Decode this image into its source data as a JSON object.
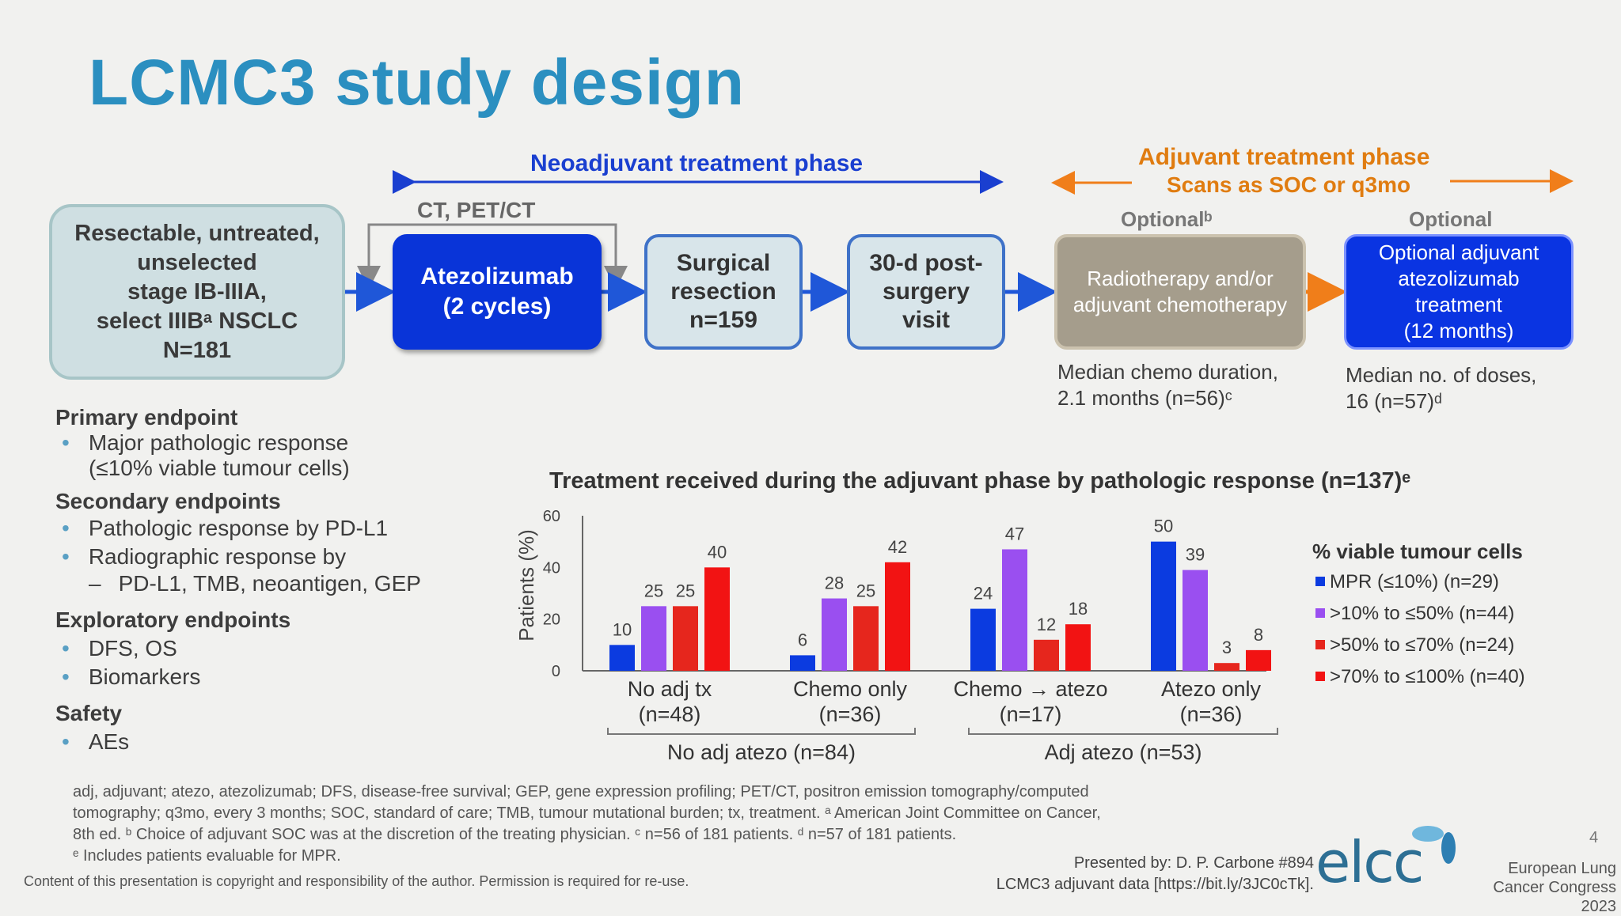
{
  "title": "LCMC3 study design",
  "phases": {
    "neoadjuvant": "Neoadjuvant treatment phase",
    "adjuvant": "Adjuvant treatment phase",
    "adjuvant_sub": "Scans as SOC or q3mo"
  },
  "flow": {
    "ct_label": "CT, PET/CT",
    "eligibility": [
      "Resectable, untreated,",
      "unselected",
      "stage IB-IIIA,",
      "select IIIBᵃ NSCLC",
      "N=181"
    ],
    "atezolizumab": [
      "Atezolizumab",
      "(2 cycles)"
    ],
    "surgical": [
      "Surgical",
      "resection",
      "n=159"
    ],
    "post_surgery": [
      "30-d post-",
      "surgery",
      "visit"
    ],
    "optional_b": "Optionalᵇ",
    "radiotherapy": [
      "Radiotherapy and/or",
      "adjuvant chemotherapy"
    ],
    "optional": "Optional",
    "optional_adjuvant": [
      "Optional adjuvant",
      "atezolizumab",
      "treatment",
      "(12 months)"
    ],
    "chemo_note": [
      "Median chemo duration,",
      "2.1 months (n=56)ᶜ"
    ],
    "doses_note": [
      "Median no. of doses,",
      "16 (n=57)ᵈ"
    ]
  },
  "endpoints": {
    "primary_title": "Primary endpoint",
    "primary_items": [
      "Major pathologic response",
      "(≤10% viable tumour cells)"
    ],
    "secondary_title": "Secondary endpoints",
    "secondary_items": [
      "Pathologic response by PD-L1",
      "Radiographic response by",
      "PD-L1, TMB, neoantigen, GEP"
    ],
    "exploratory_title": "Exploratory endpoints",
    "exploratory_items": [
      "DFS, OS",
      "Biomarkers"
    ],
    "safety_title": "Safety",
    "safety_items": [
      "AEs"
    ]
  },
  "chart_data": {
    "type": "bar",
    "title": "Treatment received during the adjuvant phase by pathologic response (n=137)ᵉ",
    "ylabel": "Patients (%)",
    "ylim": [
      0,
      60
    ],
    "yticks": [
      0,
      20,
      40,
      60
    ],
    "categories": [
      "No adj tx",
      "Chemo only",
      "Chemo → atezo",
      "Atezo only"
    ],
    "category_n": [
      "(n=48)",
      "(n=36)",
      "(n=17)",
      "(n=36)"
    ],
    "groups": [
      {
        "label": "No adj atezo (n=84)"
      },
      {
        "label": "Adj atezo (n=53)"
      }
    ],
    "legend_title": "% viable tumour cells",
    "series": [
      {
        "name": "MPR (≤10%) (n=29)",
        "color": "#0b3be0",
        "values": [
          10,
          6,
          24,
          50
        ]
      },
      {
        "name": ">10% to ≤50% (n=44)",
        "color": "#9a4ff0",
        "values": [
          25,
          28,
          47,
          39
        ]
      },
      {
        "name": ">50% to ≤70% (n=24)",
        "color": "#e6261d",
        "values": [
          25,
          25,
          12,
          3
        ]
      },
      {
        "name": ">70% to ≤100% (n=40)",
        "color": "#f21313",
        "values": [
          40,
          42,
          18,
          8
        ]
      }
    ]
  },
  "footnotes": [
    "adj, adjuvant; atezo, atezolizumab; DFS, disease-free survival; GEP, gene expression profiling; PET/CT, positron emission tomography/computed",
    "tomography; q3mo, every 3 months; SOC, standard of care; TMB, tumour mutational burden; tx, treatment. ᵃ American Joint Committee on Cancer,",
    "8th ed. ᵇ Choice of adjuvant SOC was at the discretion of the treating physician. ᶜ n=56 of 181 patients. ᵈ n=57 of 181 patients.",
    "ᵉ Includes patients evaluable for MPR."
  ],
  "copyright": "Content of this presentation is copyright and responsibility of the author. Permission is required for re-use.",
  "presented": [
    "Presented by: D. P. Carbone #894",
    "LCMC3 adjuvant data [https://bit.ly/3JC0cTk]."
  ],
  "logo_text": "elcc",
  "congress": [
    "European Lung",
    "Cancer Congress 2023"
  ],
  "page_number": "4",
  "colors": {
    "title": "#2b8fc0",
    "neo_phase": "#1a3fd0",
    "adj_phase": "#e07c10"
  }
}
